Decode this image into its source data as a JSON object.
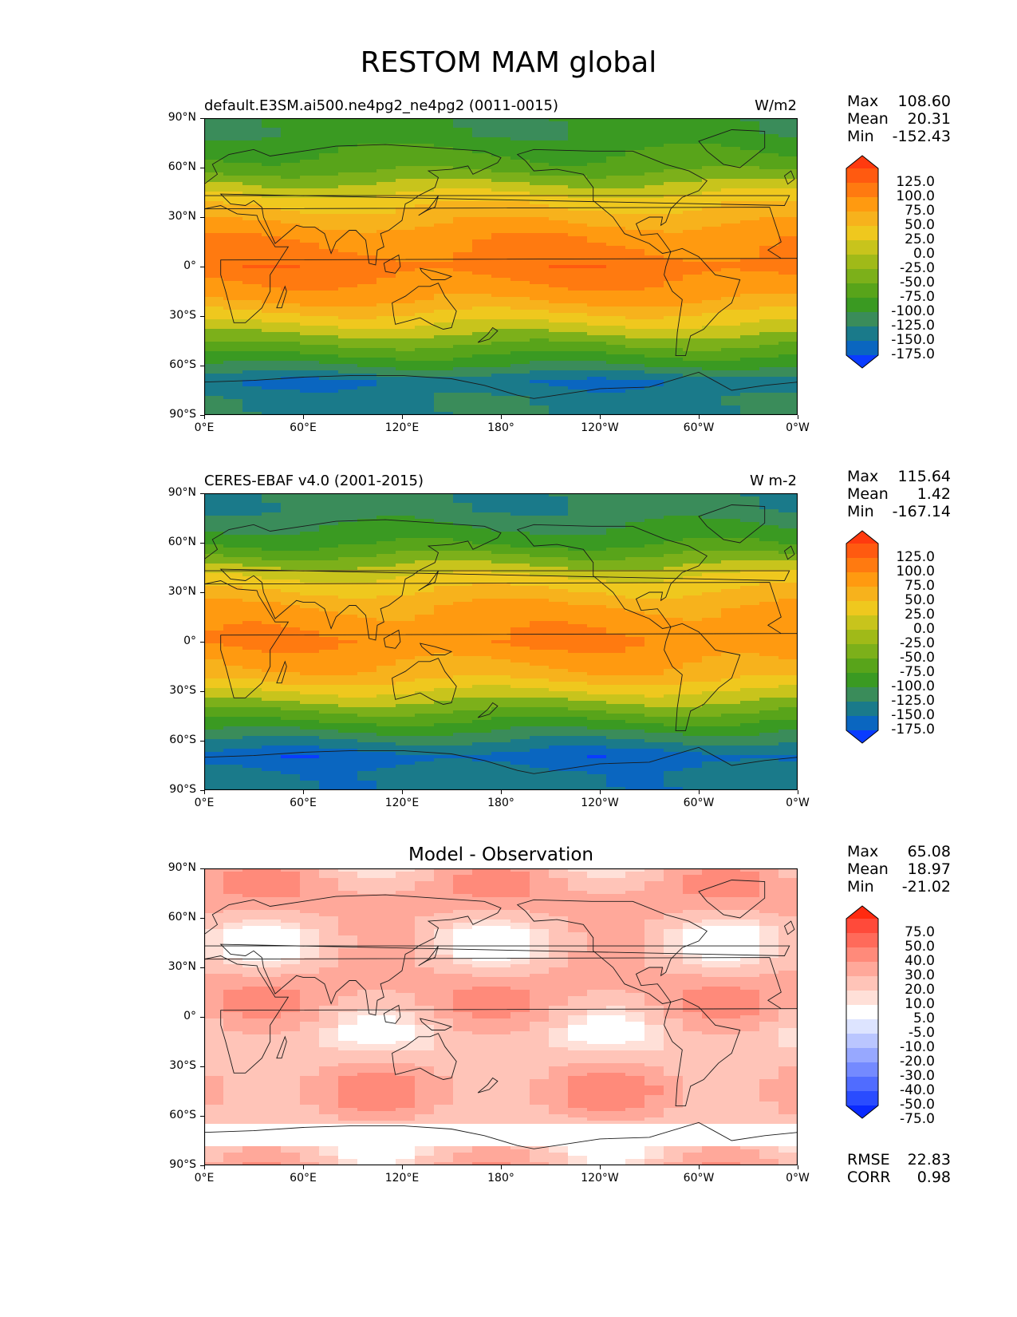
{
  "figure": {
    "title": "RESTOM MAM global"
  },
  "axes": {
    "lat_ticks": [
      "90°N",
      "60°N",
      "30°N",
      "0°",
      "30°S",
      "60°S",
      "90°S"
    ],
    "lon_ticks": [
      "0°E",
      "60°E",
      "120°E",
      "180°",
      "120°W",
      "60°W",
      "0°W"
    ]
  },
  "panels": [
    {
      "left_label": "default.E3SM.ai500.ne4pg2_ne4pg2 (0011-0015)",
      "right_label": "W/m2",
      "center_label": "",
      "stats": [
        {
          "k": "Max",
          "v": "108.60"
        },
        {
          "k": "Mean",
          "v": "20.31"
        },
        {
          "k": "Min",
          "v": "-152.43"
        }
      ],
      "colorbar_labels": [
        "125.0",
        "100.0",
        "75.0",
        "50.0",
        "25.0",
        "0.0",
        "-25.0",
        "-50.0",
        "-75.0",
        "-100.0",
        "-125.0",
        "-150.0",
        "-175.0"
      ],
      "colors": [
        "#ff3a0f",
        "#ff5a10",
        "#ff7a10",
        "#ff9a10",
        "#f7b21c",
        "#efc81e",
        "#c8c41c",
        "#a0ba18",
        "#7cb01a",
        "#58a41a",
        "#3a9a22",
        "#3a8c5a",
        "#1a7a8a",
        "#0a66c0",
        "#0a3cff"
      ]
    },
    {
      "left_label": "CERES-EBAF v4.0 (2001-2015)",
      "right_label": "W m-2",
      "center_label": "",
      "stats": [
        {
          "k": "Max",
          "v": "115.64"
        },
        {
          "k": "Mean",
          "v": "1.42"
        },
        {
          "k": "Min",
          "v": "-167.14"
        }
      ],
      "colorbar_labels": [
        "125.0",
        "100.0",
        "75.0",
        "50.0",
        "25.0",
        "0.0",
        "-25.0",
        "-50.0",
        "-75.0",
        "-100.0",
        "-125.0",
        "-150.0",
        "-175.0"
      ],
      "colors": [
        "#ff3a0f",
        "#ff5a10",
        "#ff7a10",
        "#ff9a10",
        "#f7b21c",
        "#efc81e",
        "#c8c41c",
        "#a0ba18",
        "#7cb01a",
        "#58a41a",
        "#3a9a22",
        "#3a8c5a",
        "#1a7a8a",
        "#0a66c0",
        "#0a3cff"
      ]
    },
    {
      "left_label": "",
      "right_label": "",
      "center_label": "Model - Observation",
      "stats": [
        {
          "k": "Max",
          "v": "65.08"
        },
        {
          "k": "Mean",
          "v": "18.97"
        },
        {
          "k": "Min",
          "v": "-21.02"
        }
      ],
      "colorbar_labels": [
        "75.0",
        "50.0",
        "40.0",
        "30.0",
        "20.0",
        "10.0",
        "5.0",
        "-5.0",
        "-10.0",
        "-20.0",
        "-30.0",
        "-40.0",
        "-50.0",
        "-75.0"
      ],
      "colors": [
        "#ff2a10",
        "#ff4a3a",
        "#ff6a5a",
        "#ff8a7a",
        "#ffa89a",
        "#ffc4b8",
        "#ffe0d8",
        "#ffffff",
        "#dde4ff",
        "#bac6ff",
        "#97a8ff",
        "#748aff",
        "#506cff",
        "#2a4cff",
        "#0a2aff"
      ],
      "extra_stats": [
        {
          "k": "RMSE",
          "v": "22.83"
        },
        {
          "k": "CORR",
          "v": "0.98"
        }
      ]
    }
  ],
  "chart_data": [
    {
      "type": "heatmap",
      "title": "default.E3SM.ai500.ne4pg2_ne4pg2 (0011-0015)",
      "units": "W/m2",
      "ylim": [
        -90,
        90
      ],
      "xlim": [
        0,
        360
      ],
      "levels": [
        -175,
        -150,
        -125,
        -100,
        -75,
        -50,
        -25,
        0,
        25,
        50,
        75,
        100,
        125
      ],
      "zonal_profile": {
        "lat": [
          80,
          60,
          40,
          20,
          0,
          -20,
          -40,
          -60,
          -70,
          -80
        ],
        "value": [
          -95,
          -60,
          15,
          65,
          90,
          55,
          -20,
          -100,
          -150,
          -130
        ]
      },
      "max": 108.6,
      "mean": 20.31,
      "min": -152.43
    },
    {
      "type": "heatmap",
      "title": "CERES-EBAF v4.0 (2001-2015)",
      "units": "W m-2",
      "ylim": [
        -90,
        90
      ],
      "xlim": [
        0,
        360
      ],
      "levels": [
        -175,
        -150,
        -125,
        -100,
        -75,
        -50,
        -25,
        0,
        25,
        50,
        75,
        100,
        125
      ],
      "zonal_profile": {
        "lat": [
          80,
          60,
          40,
          20,
          0,
          -20,
          -40,
          -60,
          -70,
          -80
        ],
        "value": [
          -120,
          -80,
          0,
          55,
          75,
          40,
          -40,
          -125,
          -165,
          -140
        ]
      },
      "max": 115.64,
      "mean": 1.42,
      "min": -167.14
    },
    {
      "type": "heatmap",
      "title": "Model - Observation",
      "ylim": [
        -90,
        90
      ],
      "xlim": [
        0,
        360
      ],
      "levels": [
        -75,
        -50,
        -40,
        -30,
        -20,
        -10,
        -5,
        5,
        10,
        20,
        30,
        40,
        50,
        75
      ],
      "max": 65.08,
      "mean": 18.97,
      "min": -21.02,
      "rmse": 22.83,
      "corr": 0.98
    }
  ]
}
